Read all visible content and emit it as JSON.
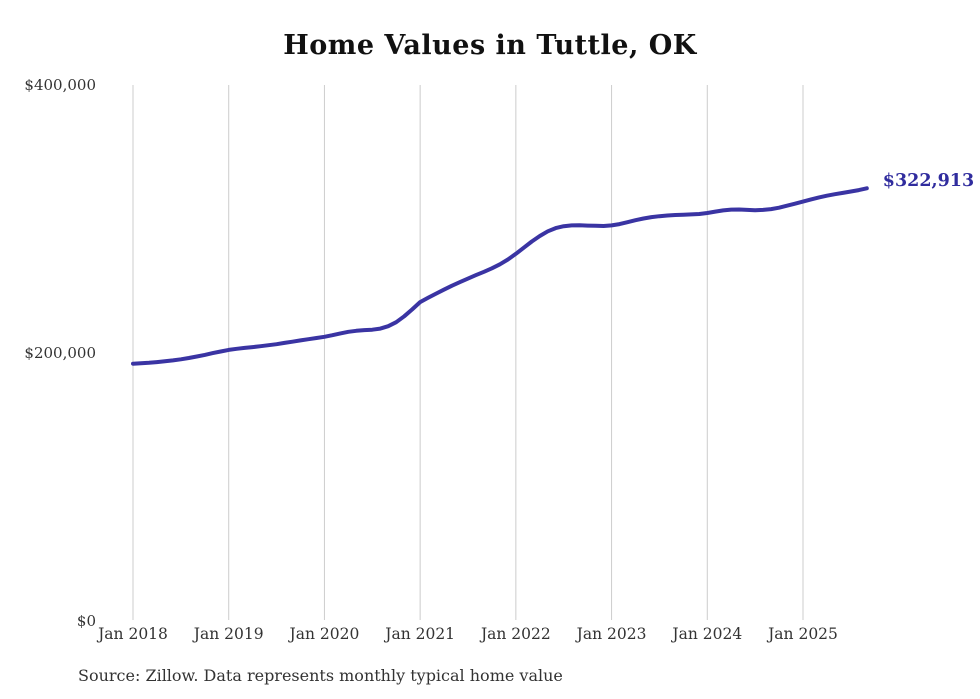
{
  "page": {
    "title": "Home Values in Tuttle, OK",
    "source_note": "Source: Zillow. Data represents monthly typical home value",
    "end_value_label": "$322,913"
  },
  "colors": {
    "background": "#ffffff",
    "line": "#3a34a3",
    "end_label": "#302c9e",
    "gridline": "#cccccc",
    "axis_text": "#333333",
    "title_text": "#111111"
  },
  "chart_data": {
    "type": "line",
    "title": "Home Values in Tuttle, OK",
    "series_name": "Monthly typical home value (USD)",
    "grid": "vertical-only",
    "legend": "none",
    "ylim": [
      0,
      400000
    ],
    "y_ticks": [
      {
        "label": "$0",
        "value": 0
      },
      {
        "label": "$200,000",
        "value": 200000
      },
      {
        "label": "$400,000",
        "value": 400000
      }
    ],
    "x_tick_labels": [
      "Jan 2018",
      "Jan 2019",
      "Jan 2020",
      "Jan 2021",
      "Jan 2022",
      "Jan 2023",
      "Jan 2024",
      "Jan 2025"
    ],
    "annotation": {
      "text": "$322,913",
      "value": 322913,
      "position": "end-of-line"
    },
    "x": [
      "2018-01",
      "2018-02",
      "2018-03",
      "2018-04",
      "2018-05",
      "2018-06",
      "2018-07",
      "2018-08",
      "2018-09",
      "2018-10",
      "2018-11",
      "2018-12",
      "2019-01",
      "2019-02",
      "2019-03",
      "2019-04",
      "2019-05",
      "2019-06",
      "2019-07",
      "2019-08",
      "2019-09",
      "2019-10",
      "2019-11",
      "2019-12",
      "2020-01",
      "2020-02",
      "2020-03",
      "2020-04",
      "2020-05",
      "2020-06",
      "2020-07",
      "2020-08",
      "2020-09",
      "2020-10",
      "2020-11",
      "2020-12",
      "2021-01",
      "2021-02",
      "2021-03",
      "2021-04",
      "2021-05",
      "2021-06",
      "2021-07",
      "2021-08",
      "2021-09",
      "2021-10",
      "2021-11",
      "2021-12",
      "2022-01",
      "2022-02",
      "2022-03",
      "2022-04",
      "2022-05",
      "2022-06",
      "2022-07",
      "2022-08",
      "2022-09",
      "2022-10",
      "2022-11",
      "2022-12",
      "2023-01",
      "2023-02",
      "2023-03",
      "2023-04",
      "2023-05",
      "2023-06",
      "2023-07",
      "2023-08",
      "2023-09",
      "2023-10",
      "2023-11",
      "2023-12",
      "2024-01",
      "2024-02",
      "2024-03",
      "2024-04",
      "2024-05",
      "2024-06",
      "2024-07",
      "2024-08",
      "2024-09",
      "2024-10",
      "2024-11",
      "2024-12",
      "2025-01",
      "2025-02",
      "2025-03",
      "2025-04",
      "2025-05",
      "2025-06",
      "2025-07",
      "2025-08",
      "2025-09"
    ],
    "values": [
      192000,
      192300,
      192700,
      193200,
      193800,
      194500,
      195300,
      196300,
      197400,
      198600,
      199900,
      201100,
      202300,
      203100,
      203800,
      204400,
      205100,
      205800,
      206600,
      207500,
      208400,
      209400,
      210300,
      211200,
      212100,
      213300,
      214600,
      215800,
      216600,
      217100,
      217400,
      218200,
      220000,
      223000,
      227400,
      232500,
      238000,
      241200,
      244300,
      247300,
      250200,
      252900,
      255500,
      258100,
      260600,
      263200,
      266200,
      269800,
      274000,
      278600,
      283200,
      287300,
      290800,
      293200,
      294600,
      295200,
      295300,
      295100,
      294900,
      294800,
      295200,
      296200,
      297600,
      299100,
      300400,
      301400,
      302100,
      302600,
      303000,
      303200,
      303400,
      303700,
      304500,
      305500,
      306400,
      307000,
      307100,
      306800,
      306500,
      306800,
      307400,
      308400,
      309900,
      311400,
      313000,
      314600,
      316100,
      317400,
      318500,
      319500,
      320500,
      321600,
      322913
    ]
  }
}
